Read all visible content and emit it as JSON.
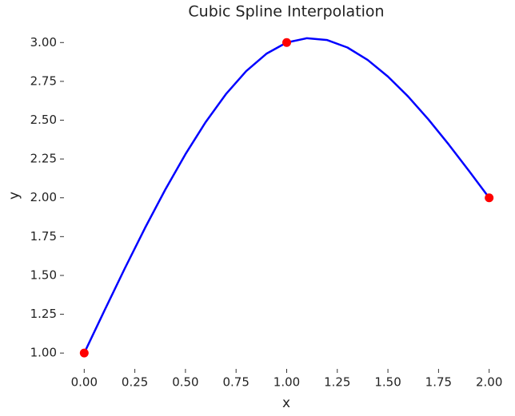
{
  "chart_data": {
    "type": "line",
    "title": "Cubic Spline Interpolation",
    "xlabel": "x",
    "ylabel": "y",
    "xlim": [
      -0.1,
      2.1
    ],
    "ylim": [
      0.898,
      3.13
    ],
    "xticks": [
      {
        "value": 0,
        "label": "0.00"
      },
      {
        "value": 0.25,
        "label": "0.25"
      },
      {
        "value": 0.5,
        "label": "0.50"
      },
      {
        "value": 0.75,
        "label": "0.75"
      },
      {
        "value": 1,
        "label": "1.00"
      },
      {
        "value": 1.25,
        "label": "1.25"
      },
      {
        "value": 1.5,
        "label": "1.50"
      },
      {
        "value": 1.75,
        "label": "1.75"
      },
      {
        "value": 2,
        "label": "2.00"
      }
    ],
    "yticks": [
      {
        "value": 1,
        "label": "1.00"
      },
      {
        "value": 1.25,
        "label": "1.25"
      },
      {
        "value": 1.5,
        "label": "1.50"
      },
      {
        "value": 1.75,
        "label": "1.75"
      },
      {
        "value": 2,
        "label": "2.00"
      },
      {
        "value": 2.25,
        "label": "2.25"
      },
      {
        "value": 2.5,
        "label": "2.50"
      },
      {
        "value": 2.75,
        "label": "2.75"
      },
      {
        "value": 3,
        "label": "3.00"
      }
    ],
    "grid": false,
    "series": [
      {
        "style": "line",
        "color": "#0000ff",
        "x": [
          0,
          0.1,
          0.2,
          0.3,
          0.4,
          0.5,
          0.6,
          0.7,
          0.8,
          0.9,
          1.0,
          1.1,
          1.2,
          1.3,
          1.4,
          1.5,
          1.6,
          1.7,
          1.8,
          1.9,
          2.0
        ],
        "values": [
          1,
          1.274,
          1.544,
          1.805,
          2.052,
          2.281,
          2.488,
          2.668,
          2.816,
          2.928,
          3,
          3.028,
          3.016,
          2.968,
          2.888,
          2.781,
          2.652,
          2.505,
          2.344,
          2.174,
          2
        ]
      },
      {
        "style": "points",
        "color": "#ff0000",
        "x": [
          0,
          1,
          2
        ],
        "values": [
          1,
          3,
          2
        ]
      }
    ]
  }
}
